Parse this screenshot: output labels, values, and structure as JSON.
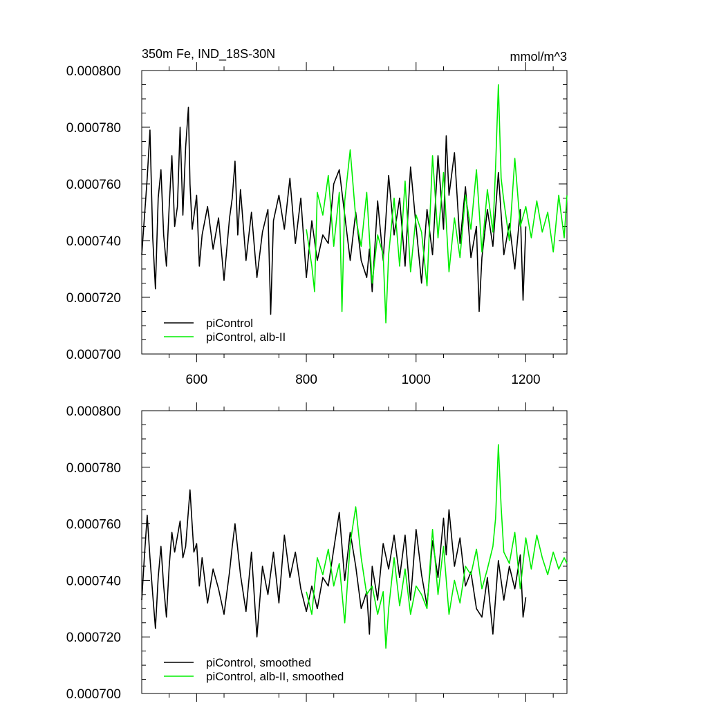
{
  "chart_data": [
    {
      "type": "line",
      "title_left": "350m Fe, IND_18S-30N",
      "title_right": "mmol/m^3",
      "xlim": [
        500,
        1275
      ],
      "ylim": [
        0.0007,
        0.0008
      ],
      "x_ticks": [
        600,
        800,
        1000,
        1200
      ],
      "x_tick_labels": [
        "600",
        "800",
        "1000",
        "1200"
      ],
      "y_ticks": [
        0.0007,
        0.00072,
        0.00074,
        0.00076,
        0.00078,
        0.0008
      ],
      "y_tick_labels": [
        "0.000700",
        "0.000720",
        "0.000740",
        "0.000760",
        "0.000780",
        "0.000800"
      ],
      "show_x_tick_labels": true,
      "legend": {
        "placement": "bottom-left",
        "entries": [
          "piControl",
          "piControl, alb-II"
        ]
      },
      "series": [
        {
          "name": "piControl",
          "color": "#000000",
          "x": [
            500,
            510,
            515,
            520,
            525,
            530,
            535,
            540,
            545,
            550,
            555,
            560,
            565,
            570,
            575,
            580,
            585,
            588,
            592,
            600,
            605,
            610,
            620,
            630,
            640,
            650,
            660,
            665,
            670,
            675,
            680,
            690,
            700,
            710,
            720,
            730,
            735,
            740,
            750,
            760,
            770,
            780,
            790,
            800,
            810,
            820,
            830,
            840,
            850,
            860,
            870,
            880,
            890,
            900,
            910,
            915,
            920,
            930,
            940,
            950,
            960,
            970,
            980,
            990,
            1000,
            1010,
            1020,
            1030,
            1040,
            1050,
            1055,
            1060,
            1070,
            1080,
            1090,
            1100,
            1110,
            1115,
            1120,
            1130,
            1140,
            1150,
            1160,
            1170,
            1180,
            1190,
            1195,
            1200
          ],
          "y": [
            0.000735,
            0.000762,
            0.000779,
            0.000741,
            0.000723,
            0.000755,
            0.000765,
            0.000742,
            0.000731,
            0.000752,
            0.00077,
            0.000745,
            0.000752,
            0.00078,
            0.000749,
            0.000773,
            0.000787,
            0.00076,
            0.000744,
            0.000756,
            0.000731,
            0.000742,
            0.000752,
            0.000737,
            0.000748,
            0.000726,
            0.000748,
            0.000755,
            0.000768,
            0.000742,
            0.000758,
            0.000733,
            0.00075,
            0.000727,
            0.000743,
            0.000751,
            0.000714,
            0.000747,
            0.000756,
            0.000744,
            0.000762,
            0.000739,
            0.000755,
            0.000727,
            0.000747,
            0.000733,
            0.000742,
            0.000739,
            0.00076,
            0.000765,
            0.000749,
            0.000733,
            0.00075,
            0.000733,
            0.000727,
            0.000737,
            0.000722,
            0.000754,
            0.000733,
            0.000763,
            0.000742,
            0.000755,
            0.000731,
            0.000766,
            0.000745,
            0.000725,
            0.000751,
            0.000735,
            0.00077,
            0.000744,
            0.000777,
            0.000756,
            0.000771,
            0.000739,
            0.000759,
            0.000734,
            0.000745,
            0.000715,
            0.000734,
            0.000751,
            0.000738,
            0.000764,
            0.000735,
            0.000746,
            0.00073,
            0.000751,
            0.000719,
            0.000745
          ]
        },
        {
          "name": "piControl, alb-II",
          "color": "#00ee00",
          "x": [
            800,
            810,
            815,
            820,
            830,
            840,
            850,
            860,
            865,
            870,
            880,
            885,
            890,
            900,
            910,
            920,
            930,
            940,
            945,
            950,
            960,
            970,
            980,
            990,
            1000,
            1010,
            1020,
            1030,
            1040,
            1050,
            1060,
            1070,
            1080,
            1090,
            1100,
            1110,
            1120,
            1130,
            1140,
            1145,
            1150,
            1155,
            1160,
            1170,
            1180,
            1190,
            1200,
            1210,
            1220,
            1230,
            1240,
            1250,
            1260,
            1270,
            1275
          ],
          "y": [
            0.000744,
            0.000731,
            0.000722,
            0.000757,
            0.000749,
            0.000763,
            0.000738,
            0.000757,
            0.000715,
            0.000754,
            0.000772,
            0.00076,
            0.000748,
            0.000738,
            0.000757,
            0.000725,
            0.000742,
            0.000735,
            0.000711,
            0.000735,
            0.000755,
            0.000731,
            0.000761,
            0.000729,
            0.000749,
            0.000743,
            0.000724,
            0.00077,
            0.000741,
            0.000764,
            0.000729,
            0.000748,
            0.000734,
            0.000756,
            0.000744,
            0.000765,
            0.000736,
            0.000758,
            0.000743,
            0.000766,
            0.000795,
            0.000762,
            0.000754,
            0.00074,
            0.000769,
            0.000745,
            0.000752,
            0.000741,
            0.000754,
            0.000743,
            0.00075,
            0.000736,
            0.000756,
            0.000741,
            0.000756
          ]
        }
      ]
    },
    {
      "type": "line",
      "xlim": [
        500,
        1275
      ],
      "ylim": [
        0.0007,
        0.0008
      ],
      "x_ticks": [
        600,
        800,
        1000,
        1200
      ],
      "y_ticks": [
        0.0007,
        0.00072,
        0.00074,
        0.00076,
        0.00078,
        0.0008
      ],
      "y_tick_labels": [
        "0.000700",
        "0.000720",
        "0.000740",
        "0.000760",
        "0.000780",
        "0.000800"
      ],
      "show_x_tick_labels": false,
      "legend": {
        "placement": "bottom-left",
        "entries": [
          "piControl, smoothed",
          "piControl, alb-II, smoothed"
        ]
      },
      "series": [
        {
          "name": "piControl, smoothed",
          "color": "#000000",
          "x": [
            500,
            505,
            510,
            515,
            520,
            525,
            530,
            535,
            540,
            545,
            550,
            555,
            560,
            570,
            575,
            580,
            588,
            595,
            600,
            605,
            610,
            620,
            630,
            640,
            650,
            660,
            665,
            670,
            680,
            690,
            700,
            710,
            720,
            730,
            740,
            750,
            760,
            770,
            780,
            790,
            800,
            810,
            820,
            830,
            840,
            850,
            860,
            870,
            880,
            890,
            900,
            910,
            915,
            920,
            930,
            940,
            950,
            960,
            970,
            980,
            990,
            1000,
            1010,
            1020,
            1030,
            1040,
            1050,
            1055,
            1060,
            1070,
            1080,
            1090,
            1100,
            1110,
            1120,
            1130,
            1140,
            1150,
            1160,
            1170,
            1180,
            1190,
            1195,
            1200
          ],
          "y": [
            0.000733,
            0.000749,
            0.000763,
            0.000748,
            0.000735,
            0.000723,
            0.000741,
            0.000752,
            0.000738,
            0.000727,
            0.000745,
            0.000757,
            0.00075,
            0.000761,
            0.000748,
            0.000752,
            0.000772,
            0.00075,
            0.000753,
            0.000738,
            0.000748,
            0.000732,
            0.000744,
            0.000737,
            0.000728,
            0.000743,
            0.000752,
            0.00076,
            0.000742,
            0.000729,
            0.00075,
            0.00072,
            0.000745,
            0.000735,
            0.00075,
            0.000732,
            0.000756,
            0.000741,
            0.00075,
            0.000737,
            0.000729,
            0.000738,
            0.00073,
            0.000741,
            0.000738,
            0.000751,
            0.000764,
            0.00074,
            0.000757,
            0.000745,
            0.00073,
            0.000736,
            0.000721,
            0.000745,
            0.000733,
            0.000753,
            0.000744,
            0.000756,
            0.000741,
            0.000756,
            0.000733,
            0.000758,
            0.000742,
            0.000731,
            0.000754,
            0.000741,
            0.000762,
            0.000749,
            0.000765,
            0.000745,
            0.000755,
            0.000738,
            0.000743,
            0.00073,
            0.000727,
            0.000741,
            0.000721,
            0.000747,
            0.000733,
            0.000745,
            0.000737,
            0.000749,
            0.000727,
            0.000734
          ]
        },
        {
          "name": "piControl, alb-II, smoothed",
          "color": "#00ee00",
          "x": [
            800,
            810,
            820,
            830,
            840,
            850,
            860,
            870,
            880,
            890,
            900,
            910,
            920,
            930,
            940,
            945,
            950,
            960,
            970,
            980,
            990,
            1000,
            1010,
            1020,
            1030,
            1040,
            1050,
            1060,
            1070,
            1080,
            1090,
            1100,
            1110,
            1120,
            1130,
            1140,
            1145,
            1150,
            1155,
            1160,
            1170,
            1180,
            1190,
            1200,
            1210,
            1220,
            1230,
            1240,
            1250,
            1260,
            1270,
            1275
          ],
          "y": [
            0.000736,
            0.000728,
            0.000748,
            0.000742,
            0.000751,
            0.000738,
            0.000746,
            0.000725,
            0.000753,
            0.000766,
            0.000748,
            0.000735,
            0.000738,
            0.000728,
            0.000736,
            0.000716,
            0.00073,
            0.000748,
            0.000731,
            0.000744,
            0.000728,
            0.000738,
            0.000735,
            0.00073,
            0.000758,
            0.000735,
            0.000752,
            0.000728,
            0.00074,
            0.000732,
            0.000745,
            0.000742,
            0.000751,
            0.000737,
            0.000744,
            0.000752,
            0.000762,
            0.000788,
            0.000766,
            0.00075,
            0.000746,
            0.000757,
            0.000737,
            0.000755,
            0.000744,
            0.000756,
            0.000748,
            0.000742,
            0.00075,
            0.000744,
            0.000748,
            0.000746
          ]
        }
      ]
    }
  ]
}
